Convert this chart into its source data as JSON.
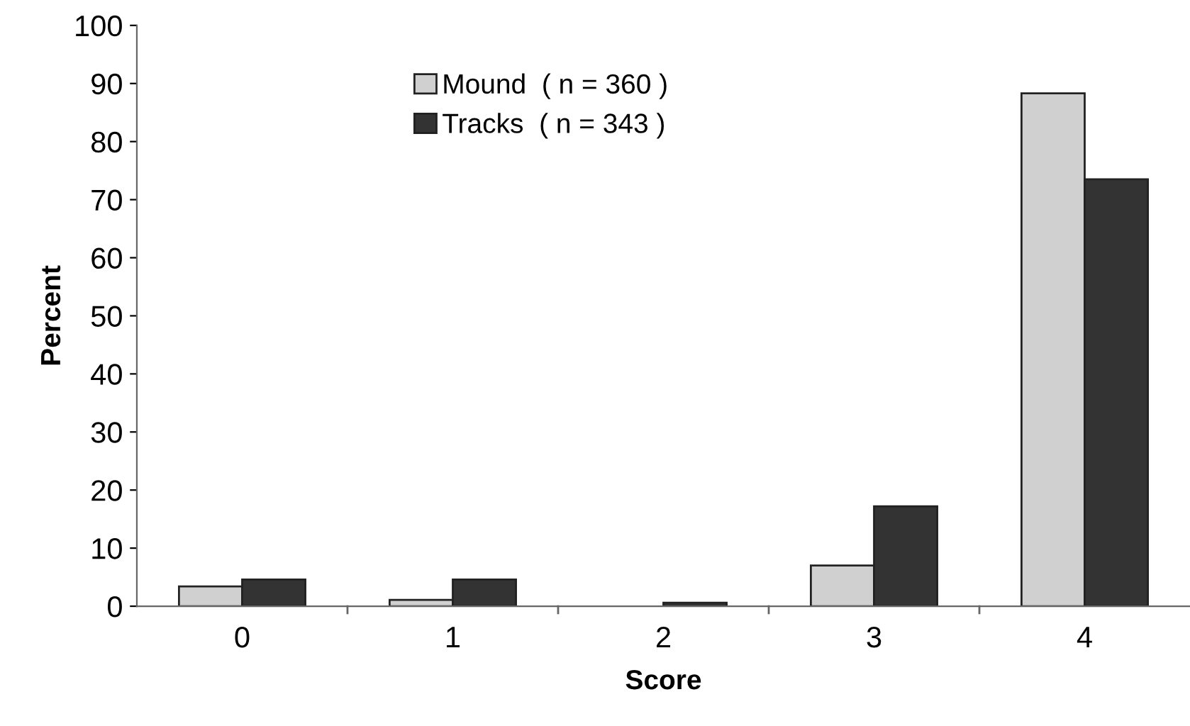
{
  "chart_data": {
    "type": "bar",
    "xlabel": "Score",
    "ylabel": "Percent",
    "categories": [
      "0",
      "1",
      "2",
      "3",
      "4"
    ],
    "series": [
      {
        "name": "Mound  ( n = 360 )",
        "color": "#d0d0d0",
        "values": [
          3.4,
          1.1,
          null,
          7.0,
          88.3
        ]
      },
      {
        "name": "Tracks  ( n = 343 )",
        "color": "#333333",
        "values": [
          4.6,
          4.6,
          0.6,
          17.2,
          73.5
        ]
      }
    ],
    "ylim": [
      0,
      100
    ],
    "yticks": [
      0,
      10,
      20,
      30,
      40,
      50,
      60,
      70,
      80,
      90,
      100
    ],
    "grid": false,
    "legend": "top"
  }
}
